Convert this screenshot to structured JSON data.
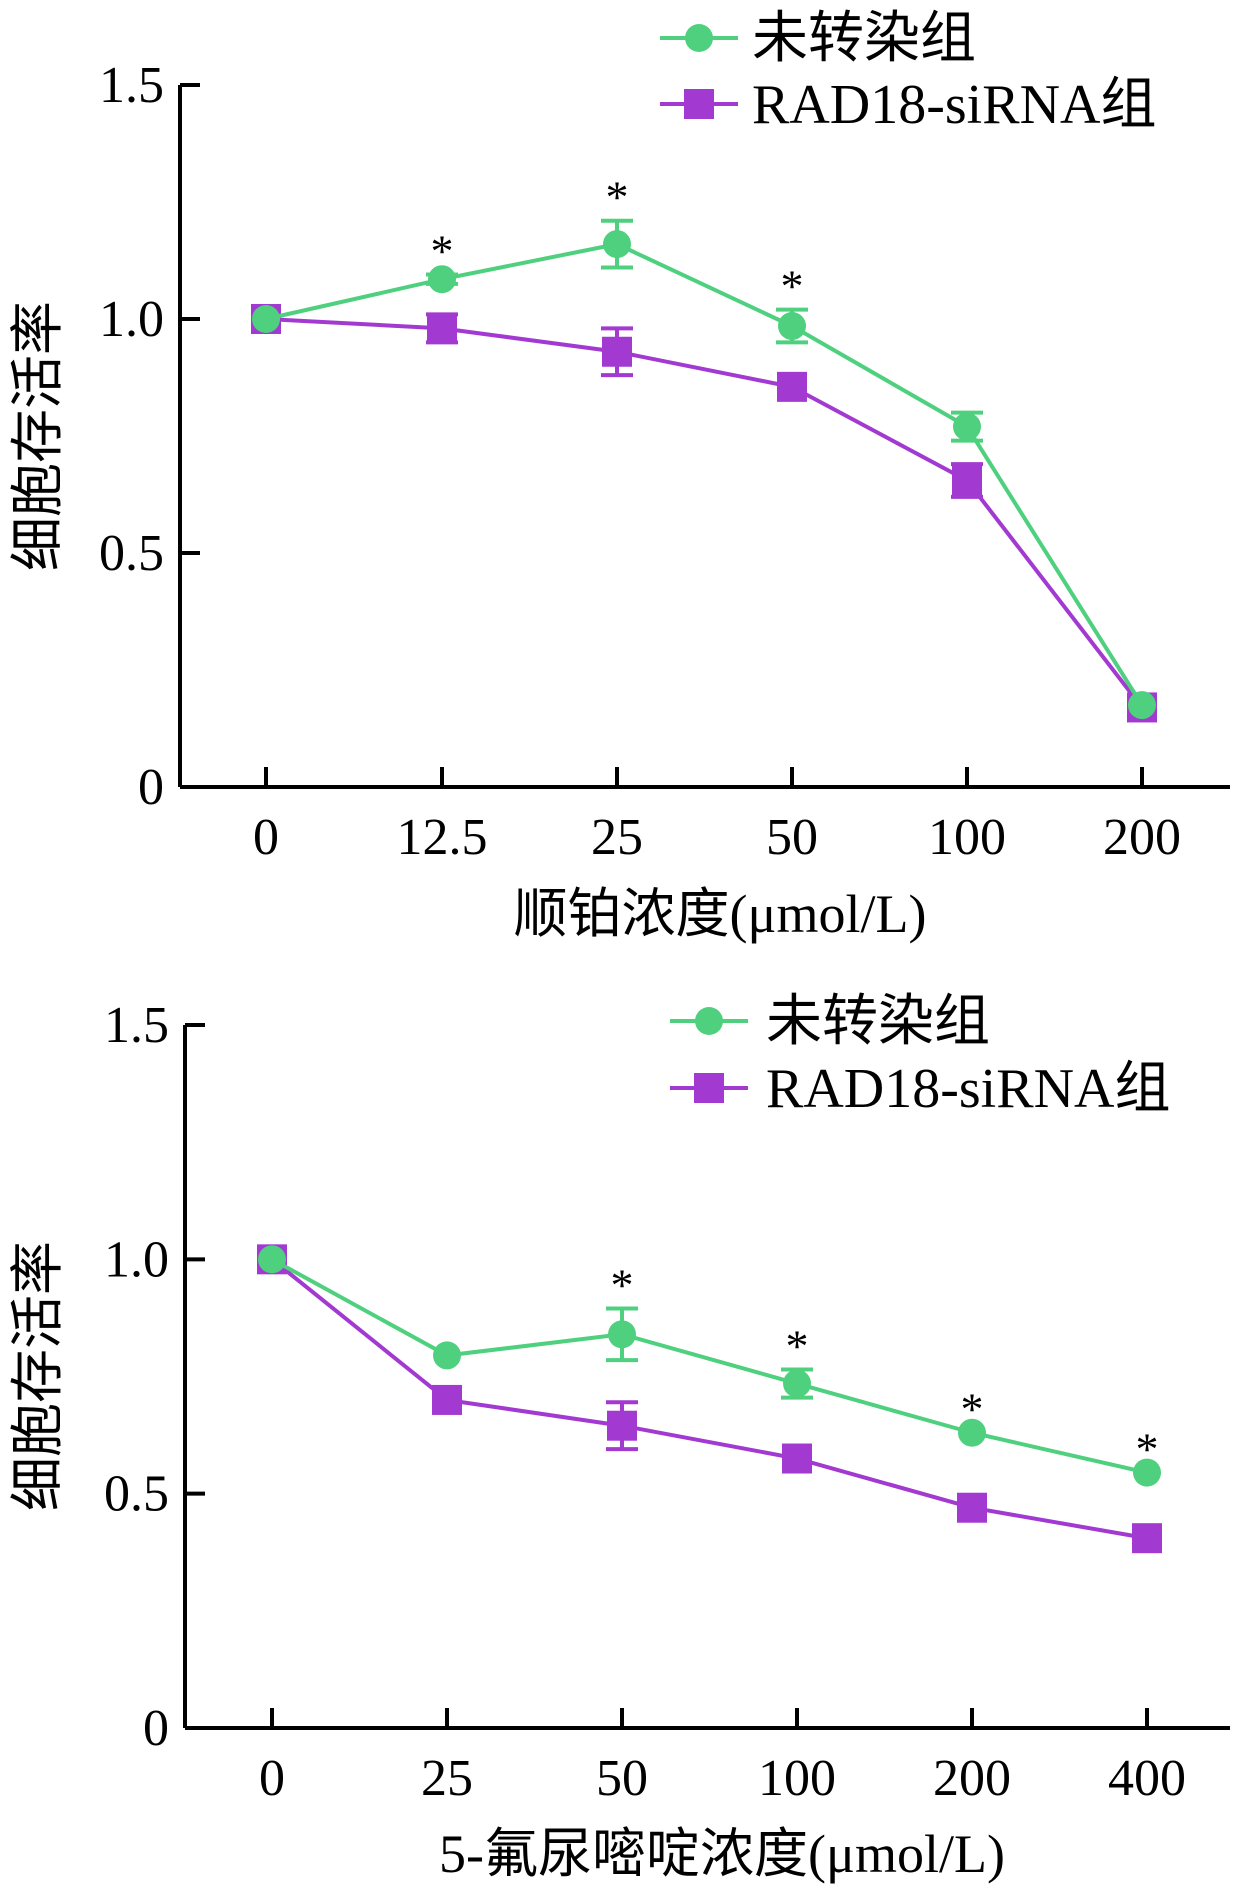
{
  "colors": {
    "untransfected": "#4ed07f",
    "rad18": "#a23ad1",
    "axis": "#000000"
  },
  "chart_data": [
    {
      "type": "line",
      "xlabel": "顺铂浓度(μmol/L)",
      "ylabel": "细胞存活率",
      "categories": [
        "0",
        "12.5",
        "25",
        "50",
        "100",
        "200"
      ],
      "ylim": [
        0,
        1.5
      ],
      "yticks": [
        "0",
        "0.5",
        "1.0",
        "1.5"
      ],
      "legend_position": "top-right",
      "series": [
        {
          "name": "未转染组",
          "marker": "circle",
          "values": [
            1.0,
            1.085,
            1.16,
            0.985,
            0.77,
            0.175
          ],
          "errors": [
            0.0,
            0.01,
            0.05,
            0.035,
            0.03,
            0.0
          ]
        },
        {
          "name": "RAD18-siRNA组",
          "marker": "square",
          "values": [
            1.0,
            0.98,
            0.93,
            0.855,
            0.655,
            0.17
          ],
          "errors": [
            0.0,
            0.03,
            0.05,
            0.0,
            0.035,
            0.0
          ]
        }
      ],
      "significance": [
        "",
        "*",
        "*",
        "*",
        "",
        ""
      ]
    },
    {
      "type": "line",
      "xlabel": "5-氟尿嘧啶浓度(μmol/L)",
      "ylabel": "细胞存活率",
      "categories": [
        "0",
        "25",
        "50",
        "100",
        "200",
        "400"
      ],
      "ylim": [
        0,
        1.5
      ],
      "yticks": [
        "0",
        "0.5",
        "1.0",
        "1.5"
      ],
      "legend_position": "top-right",
      "series": [
        {
          "name": "未转染组",
          "marker": "circle",
          "values": [
            1.0,
            0.795,
            0.84,
            0.735,
            0.63,
            0.545
          ],
          "errors": [
            0.0,
            0.0,
            0.055,
            0.03,
            0.0,
            0.0
          ]
        },
        {
          "name": "RAD18-siRNA组",
          "marker": "square",
          "values": [
            1.0,
            0.7,
            0.645,
            0.575,
            0.47,
            0.405
          ],
          "errors": [
            0.0,
            0.0,
            0.05,
            0.0,
            0.0,
            0.0
          ]
        }
      ],
      "significance": [
        "",
        "",
        "*",
        "*",
        "*",
        "*"
      ]
    }
  ]
}
